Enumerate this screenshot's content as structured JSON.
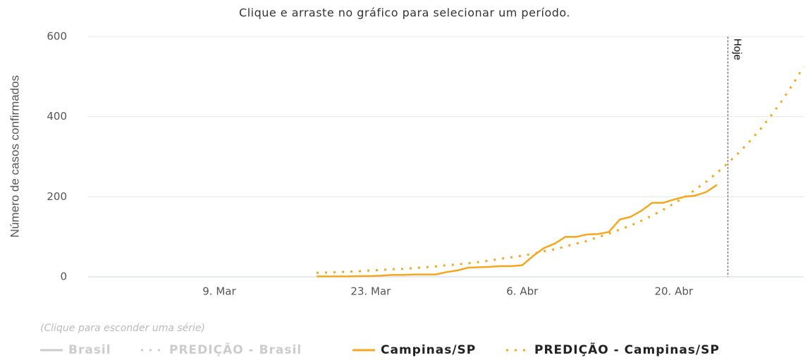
{
  "chart_data": {
    "type": "line",
    "subtitle": "Clique e arraste no gráfico para selecionar um período.",
    "y_label": "Número de casos confirmados",
    "legend_hint": "(Clique para esconder uma série)",
    "categories": [
      null,
      null,
      null,
      null,
      null,
      null,
      null,
      null,
      null,
      null,
      null,
      null,
      "9. Mar",
      null,
      null,
      null,
      null,
      null,
      null,
      null,
      null,
      null,
      null,
      null,
      null,
      null,
      "23. Mar",
      null,
      null,
      null,
      null,
      null,
      null,
      null,
      null,
      null,
      null,
      null,
      null,
      null,
      "6. Abr",
      null,
      null,
      null,
      null,
      null,
      null,
      null,
      null,
      null,
      null,
      null,
      null,
      null,
      "20. Abr",
      null,
      null,
      null,
      null,
      null,
      null,
      null,
      null,
      null,
      null,
      null,
      null
    ],
    "ylim": [
      0,
      600
    ],
    "yticks": [
      0,
      200,
      400,
      600
    ],
    "grid": true,
    "today_line": {
      "label": "Hoje",
      "category_index": 59
    },
    "series": [
      {
        "name": "Brasil",
        "color": "#cccccc",
        "dash": "solid",
        "visible": false
      },
      {
        "name": "PREDIÇÃO - Brasil",
        "color": "#cccccc",
        "dash": "dotted",
        "visible": false
      },
      {
        "name": "Campinas/SP",
        "color": "#f7a61c",
        "dash": "solid",
        "visible": true,
        "values": [
          null,
          null,
          null,
          null,
          null,
          null,
          null,
          null,
          null,
          null,
          null,
          null,
          null,
          null,
          null,
          null,
          null,
          null,
          null,
          null,
          null,
          1,
          1,
          1,
          1,
          2,
          2,
          3,
          5,
          5,
          6,
          6,
          6,
          12,
          16,
          23,
          24,
          25,
          27,
          27,
          29,
          52,
          72,
          83,
          100,
          100,
          106,
          107,
          112,
          143,
          150,
          165,
          185,
          185,
          193,
          200,
          203,
          212,
          230,
          null,
          null,
          null,
          null,
          null,
          null,
          null,
          null
        ]
      },
      {
        "name": "PREDIÇÃO - Campinas/SP",
        "color": "#f7a61c",
        "dash": "dotted",
        "visible": true,
        "values": [
          null,
          null,
          null,
          null,
          null,
          null,
          null,
          null,
          null,
          null,
          null,
          null,
          null,
          null,
          null,
          null,
          null,
          null,
          null,
          null,
          null,
          10,
          11,
          12,
          13,
          14,
          16,
          17,
          19,
          20,
          22,
          24,
          26,
          29,
          31,
          34,
          37,
          41,
          45,
          49,
          53,
          58,
          64,
          69,
          76,
          83,
          90,
          99,
          108,
          118,
          128,
          140,
          153,
          167,
          183,
          199,
          218,
          238,
          260,
          284,
          310,
          338,
          369,
          403,
          440,
          481,
          525
        ]
      }
    ]
  }
}
